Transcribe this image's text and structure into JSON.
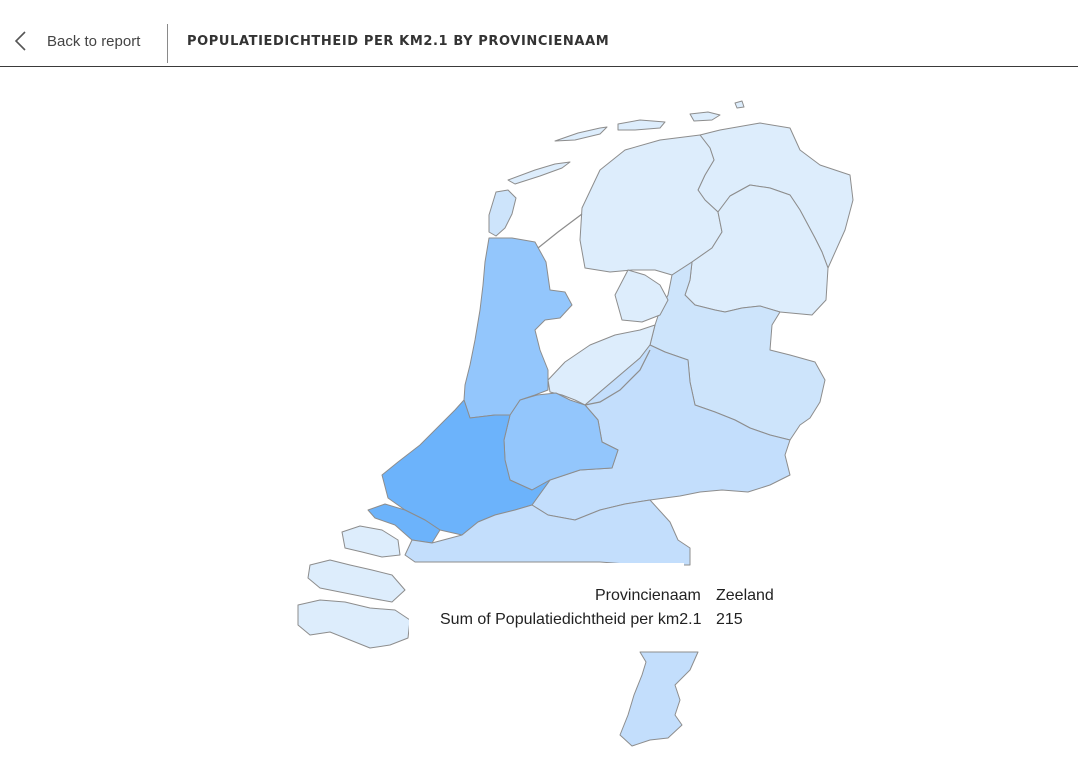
{
  "header": {
    "back_label": "Back to report",
    "title": "POPULATIEDICHTHEID PER KM2.1 BY PROVINCIENAAM"
  },
  "colors": {
    "lightest": "#ddedfc",
    "light": "#cde4fb",
    "mid_light": "#c3defc",
    "medium": "#93c6fc",
    "strong": "#6cb3fb"
  },
  "map": {
    "measure": "Sum of Populatiedichtheid per km2.1",
    "provinces": [
      {
        "name": "Groningen",
        "color": "#ddedfc"
      },
      {
        "name": "Friesland",
        "color": "#ddedfc"
      },
      {
        "name": "Drenthe",
        "color": "#ddedfc"
      },
      {
        "name": "Overijssel",
        "color": "#cde4fb"
      },
      {
        "name": "Flevoland",
        "color": "#ddedfc"
      },
      {
        "name": "Gelderland",
        "color": "#c3defc"
      },
      {
        "name": "Utrecht",
        "color": "#93c6fc"
      },
      {
        "name": "Noord-Holland",
        "color": "#93c6fc"
      },
      {
        "name": "Zuid-Holland",
        "color": "#6cb3fb"
      },
      {
        "name": "Zeeland",
        "color": "#ddedfc"
      },
      {
        "name": "Noord-Brabant",
        "color": "#c3defc"
      },
      {
        "name": "Limburg",
        "color": "#c3defc"
      }
    ]
  },
  "tooltip": {
    "key1": "Provincienaam",
    "val1": "Zeeland",
    "key2": "Sum of Populatiedichtheid per km2.1",
    "val2": "215"
  }
}
